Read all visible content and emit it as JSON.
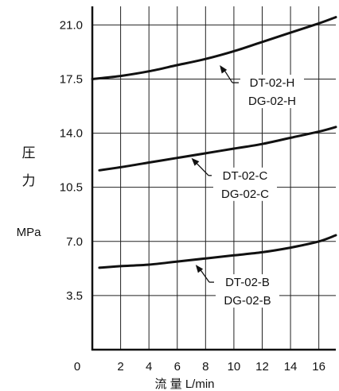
{
  "chart_data": {
    "type": "line",
    "ylabel_chars": [
      "圧",
      "力"
    ],
    "yunit": "MPa",
    "xlabel": "流 量 L/min",
    "origin_label": "0",
    "xlim": [
      0,
      17.2
    ],
    "ylim": [
      0,
      22.2
    ],
    "xticks": [
      2,
      4,
      6,
      8,
      10,
      12,
      14,
      16
    ],
    "yticks": [
      3.5,
      7.0,
      10.5,
      14.0,
      17.5,
      21.0
    ],
    "ytick_labels": [
      "3.5",
      "7.0",
      "10.5",
      "14.0",
      "17.5",
      "21.0"
    ],
    "grid": true,
    "series": [
      {
        "name": "DT-02-H",
        "alt_name": "DG-02-H",
        "x": [
          0,
          2,
          4,
          6,
          8,
          10,
          12,
          14,
          16,
          17.2
        ],
        "y": [
          17.5,
          17.7,
          18.0,
          18.4,
          18.8,
          19.3,
          19.9,
          20.5,
          21.1,
          21.5
        ],
        "label_anchor": {
          "x": 9.0,
          "y": 18.6
        }
      },
      {
        "name": "DT-02-C",
        "alt_name": "DG-02-C",
        "x": [
          0.5,
          2,
          4,
          6,
          8,
          10,
          12,
          14,
          16,
          17.2
        ],
        "y": [
          11.6,
          11.8,
          12.1,
          12.4,
          12.7,
          13.0,
          13.3,
          13.7,
          14.1,
          14.4
        ],
        "label_anchor": {
          "x": 7.0,
          "y": 12.6
        }
      },
      {
        "name": "DT-02-B",
        "alt_name": "DG-02-B",
        "x": [
          0.5,
          2,
          4,
          6,
          8,
          10,
          12,
          14,
          16,
          17.2
        ],
        "y": [
          5.3,
          5.4,
          5.5,
          5.7,
          5.9,
          6.1,
          6.3,
          6.6,
          7.0,
          7.4
        ],
        "label_anchor": {
          "x": 7.3,
          "y": 5.7
        }
      }
    ]
  }
}
